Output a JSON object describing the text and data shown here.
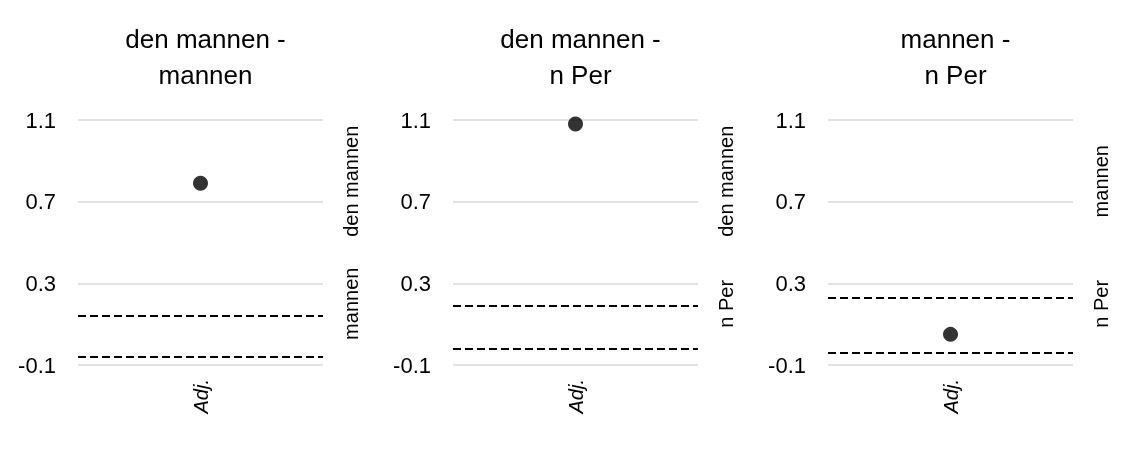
{
  "chart_data": [
    {
      "type": "scatter",
      "title": "den mannen -\nmannen",
      "categories": [
        "Adj."
      ],
      "values": [
        0.79
      ],
      "color": "#000000",
      "marker": "circle",
      "ylim": [
        -0.1,
        1.1
      ],
      "yticks": [
        -0.1,
        0.3,
        0.7,
        1.1
      ],
      "grid": "y",
      "annotations": [
        "den mannen",
        "mannen"
      ],
      "ref_lines": [
        {
          "axis": "y",
          "value": 0.14,
          "line_style": "dashed",
          "color": "#000000"
        },
        {
          "axis": "y",
          "value": -0.06,
          "line_style": "dashed",
          "color": "#000000"
        }
      ]
    },
    {
      "type": "scatter",
      "title": "den mannen -\nn Per",
      "categories": [
        "Adj."
      ],
      "values": [
        1.08
      ],
      "color": "#000000",
      "marker": "circle",
      "ylim": [
        -0.1,
        1.1
      ],
      "yticks": [
        -0.1,
        0.3,
        0.7,
        1.1
      ],
      "grid": "y",
      "annotations": [
        "den mannen",
        "n Per"
      ],
      "ref_lines": [
        {
          "axis": "y",
          "value": 0.19,
          "line_style": "dashed",
          "color": "#000000"
        },
        {
          "axis": "y",
          "value": -0.02,
          "line_style": "dashed",
          "color": "#000000"
        }
      ]
    },
    {
      "type": "scatter",
      "title": "mannen -\nn Per",
      "categories": [
        "Adj."
      ],
      "values": [
        0.05
      ],
      "color": "#000000",
      "marker": "circle",
      "ylim": [
        -0.1,
        1.1
      ],
      "yticks": [
        -0.1,
        0.3,
        0.7,
        1.1
      ],
      "grid": "y",
      "annotations": [
        "mannen",
        "n Per"
      ],
      "ref_lines": [
        {
          "axis": "y",
          "value": 0.23,
          "line_style": "dashed",
          "color": "#000000"
        },
        {
          "axis": "y",
          "value": -0.04,
          "line_style": "dashed",
          "color": "#000000"
        }
      ]
    }
  ]
}
